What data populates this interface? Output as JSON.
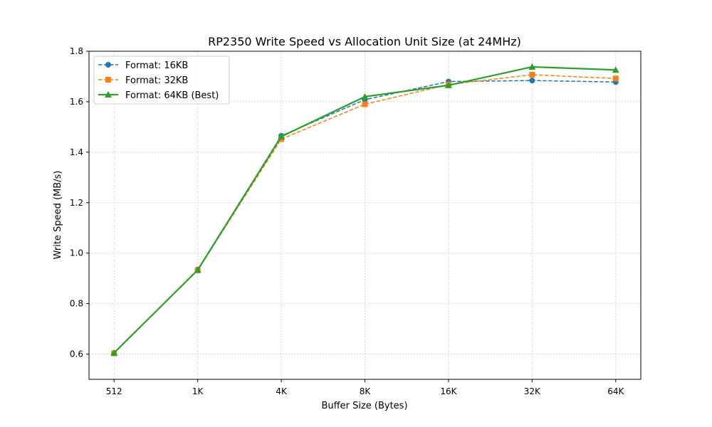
{
  "chart_data": {
    "type": "line",
    "title": "RP2350 Write Speed vs Allocation Unit Size (at 24MHz)",
    "xlabel": "Buffer Size (Bytes)",
    "ylabel": "Write Speed (MB/s)",
    "categories": [
      "512",
      "1K",
      "4K",
      "8K",
      "16K",
      "32K",
      "64K"
    ],
    "ylim": [
      0.5,
      1.8
    ],
    "yticks": [
      "0.6",
      "0.8",
      "1.0",
      "1.2",
      "1.4",
      "1.6",
      "1.8"
    ],
    "grid": true,
    "legend": "top-left",
    "series": [
      {
        "name": "Format: 16KB",
        "color": "#1f77b4",
        "marker": "circle",
        "dashed": true,
        "values": [
          0.604,
          0.935,
          1.465,
          1.608,
          1.68,
          1.684,
          1.678
        ]
      },
      {
        "name": "Format: 32KB",
        "color": "#ff7f0e",
        "marker": "square",
        "dashed": true,
        "values": [
          0.603,
          0.932,
          1.452,
          1.59,
          1.668,
          1.707,
          1.692
        ]
      },
      {
        "name": "Format: 64KB (Best)",
        "color": "#2ca02c",
        "marker": "triangle",
        "dashed": false,
        "values": [
          0.605,
          0.933,
          1.462,
          1.62,
          1.665,
          1.738,
          1.726
        ]
      }
    ]
  }
}
